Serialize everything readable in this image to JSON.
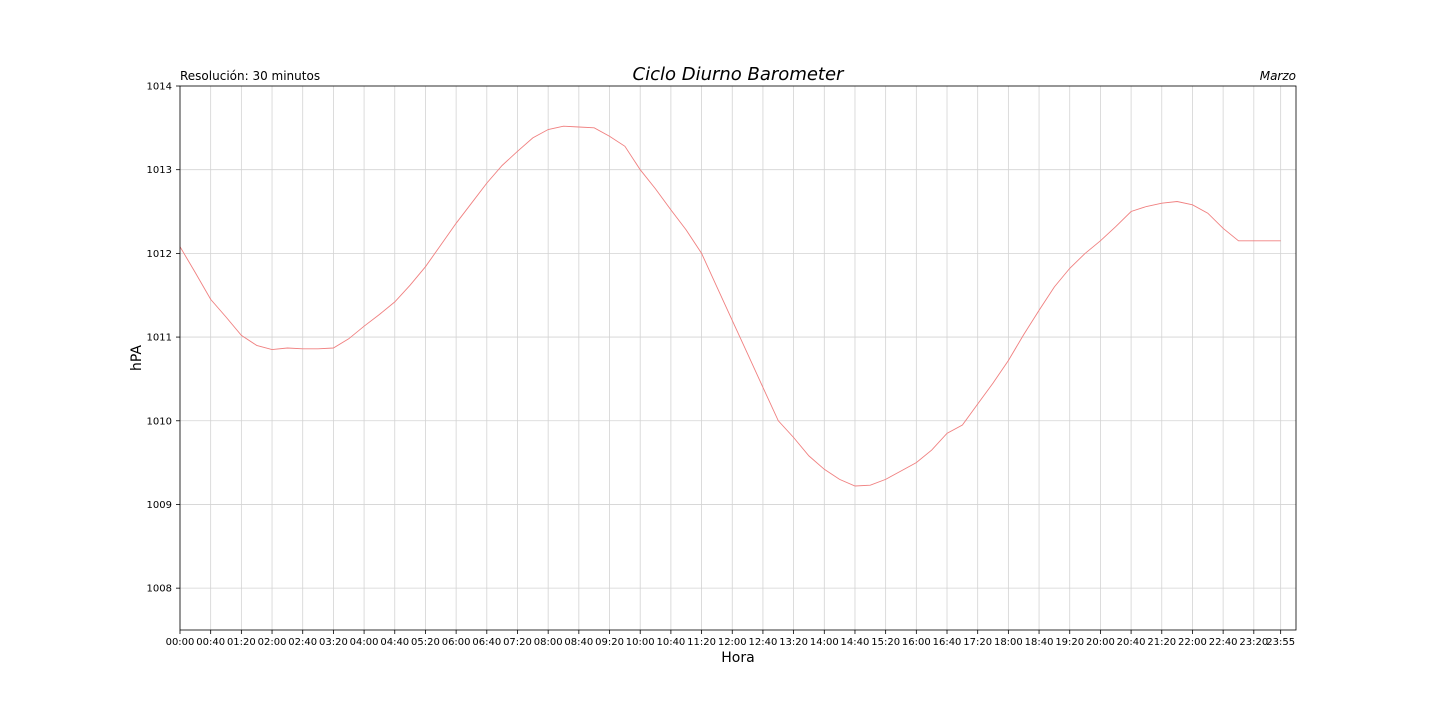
{
  "chart_data": {
    "type": "line",
    "title": "Ciclo Diurno Barometer",
    "subtitle_left": "Resolución: 30 minutos",
    "subtitle_right": "Marzo",
    "xlabel": "Hora",
    "ylabel": "hPA",
    "ylim": [
      1007.5,
      1014.0
    ],
    "yticks": [
      1008,
      1009,
      1010,
      1011,
      1012,
      1013,
      1014
    ],
    "xlim_minutes": [
      0,
      1455
    ],
    "xticks": [
      {
        "t": 0,
        "label": "00:00"
      },
      {
        "t": 40,
        "label": "00:40"
      },
      {
        "t": 80,
        "label": "01:20"
      },
      {
        "t": 120,
        "label": "02:00"
      },
      {
        "t": 160,
        "label": "02:40"
      },
      {
        "t": 200,
        "label": "03:20"
      },
      {
        "t": 240,
        "label": "04:00"
      },
      {
        "t": 280,
        "label": "04:40"
      },
      {
        "t": 320,
        "label": "05:20"
      },
      {
        "t": 360,
        "label": "06:00"
      },
      {
        "t": 400,
        "label": "06:40"
      },
      {
        "t": 440,
        "label": "07:20"
      },
      {
        "t": 480,
        "label": "08:00"
      },
      {
        "t": 520,
        "label": "08:40"
      },
      {
        "t": 560,
        "label": "09:20"
      },
      {
        "t": 600,
        "label": "10:00"
      },
      {
        "t": 640,
        "label": "10:40"
      },
      {
        "t": 680,
        "label": "11:20"
      },
      {
        "t": 720,
        "label": "12:00"
      },
      {
        "t": 760,
        "label": "12:40"
      },
      {
        "t": 800,
        "label": "13:20"
      },
      {
        "t": 840,
        "label": "14:00"
      },
      {
        "t": 880,
        "label": "14:40"
      },
      {
        "t": 920,
        "label": "15:20"
      },
      {
        "t": 960,
        "label": "16:00"
      },
      {
        "t": 1000,
        "label": "16:40"
      },
      {
        "t": 1040,
        "label": "17:20"
      },
      {
        "t": 1080,
        "label": "18:00"
      },
      {
        "t": 1120,
        "label": "18:40"
      },
      {
        "t": 1160,
        "label": "19:20"
      },
      {
        "t": 1200,
        "label": "20:00"
      },
      {
        "t": 1240,
        "label": "20:40"
      },
      {
        "t": 1280,
        "label": "21:20"
      },
      {
        "t": 1320,
        "label": "22:00"
      },
      {
        "t": 1360,
        "label": "22:40"
      },
      {
        "t": 1400,
        "label": "23:20"
      },
      {
        "t": 1435,
        "label": "23:55"
      }
    ],
    "grid": true,
    "series": [
      {
        "color": "#f08080",
        "x": [
          "00:00",
          "00:20",
          "00:40",
          "01:00",
          "01:20",
          "01:40",
          "02:00",
          "02:20",
          "02:40",
          "03:00",
          "03:20",
          "03:40",
          "04:00",
          "04:20",
          "04:40",
          "05:00",
          "05:20",
          "05:40",
          "06:00",
          "06:20",
          "06:40",
          "07:00",
          "07:20",
          "07:40",
          "08:00",
          "08:20",
          "08:40",
          "09:00",
          "09:20",
          "09:40",
          "10:00",
          "10:20",
          "10:40",
          "11:00",
          "11:20",
          "11:40",
          "12:00",
          "12:20",
          "12:40",
          "13:00",
          "13:20",
          "13:40",
          "14:00",
          "14:20",
          "14:40",
          "15:00",
          "15:20",
          "15:40",
          "16:00",
          "16:20",
          "16:40",
          "17:00",
          "17:20",
          "17:40",
          "18:00",
          "18:20",
          "18:40",
          "19:00",
          "19:20",
          "19:40",
          "20:00",
          "20:20",
          "20:40",
          "21:00",
          "21:20",
          "21:40",
          "22:00",
          "22:20",
          "22:40",
          "23:00",
          "23:20",
          "23:40",
          "23:55"
        ],
        "values": [
          1012.08,
          1011.77,
          1011.45,
          1011.24,
          1011.02,
          1010.9,
          1010.85,
          1010.87,
          1010.86,
          1010.86,
          1010.87,
          1010.98,
          1011.13,
          1011.27,
          1011.42,
          1011.62,
          1011.84,
          1012.1,
          1012.36,
          1012.6,
          1012.84,
          1013.05,
          1013.22,
          1013.38,
          1013.48,
          1013.52,
          1013.51,
          1013.5,
          1013.4,
          1013.28,
          1013.0,
          1012.77,
          1012.52,
          1012.28,
          1012.0,
          1011.6,
          1011.2,
          1010.8,
          1010.4,
          1010.0,
          1009.8,
          1009.58,
          1009.42,
          1009.3,
          1009.22,
          1009.23,
          1009.3,
          1009.4,
          1009.5,
          1009.65,
          1009.85,
          1009.95,
          1010.2,
          1010.45,
          1010.72,
          1011.03,
          1011.32,
          1011.6,
          1011.82,
          1012.0,
          1012.15,
          1012.32,
          1012.5,
          1012.56,
          1012.6,
          1012.62,
          1012.58,
          1012.48,
          1012.3,
          1012.15,
          1012.15,
          1012.15,
          1012.15
        ]
      }
    ]
  }
}
